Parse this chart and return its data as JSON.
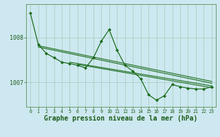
{
  "bg_color": "#cde8f0",
  "grid_color": "#a8cfc0",
  "line_color": "#1a6b1a",
  "xlabel": "Graphe pression niveau de la mer (hPa)",
  "xlabel_fontsize": 7.0,
  "yticks": [
    1007,
    1008
  ],
  "xlim": [
    -0.5,
    23.5
  ],
  "ylim": [
    1006.45,
    1008.75
  ],
  "xticks": [
    0,
    1,
    2,
    3,
    4,
    5,
    6,
    7,
    8,
    9,
    10,
    11,
    12,
    13,
    14,
    15,
    16,
    17,
    18,
    19,
    20,
    21,
    22,
    23
  ],
  "main_series": [
    1008.55,
    1007.85,
    1007.65,
    1007.55,
    1007.45,
    1007.42,
    1007.38,
    1007.32,
    1007.55,
    1007.92,
    1008.18,
    1007.72,
    1007.38,
    1007.25,
    1007.08,
    1006.72,
    1006.6,
    1006.7,
    1006.95,
    1006.9,
    1006.87,
    1006.85,
    1006.85,
    1006.9
  ],
  "trend_lines": [
    [
      [
        0,
        23
      ],
      [
        1007.85,
        1007.02
      ]
    ],
    [
      [
        0,
        23
      ],
      [
        1007.82,
        1006.98
      ]
    ],
    [
      [
        0,
        23
      ],
      [
        1007.79,
        1006.95
      ]
    ],
    [
      [
        0,
        23
      ],
      [
        1007.76,
        1006.92
      ]
    ]
  ],
  "trend_start_x": 7,
  "trend_values": [
    [
      1007.35,
      1007.05
    ],
    [
      1007.32,
      1007.0
    ],
    [
      1007.29,
      1006.95
    ]
  ]
}
